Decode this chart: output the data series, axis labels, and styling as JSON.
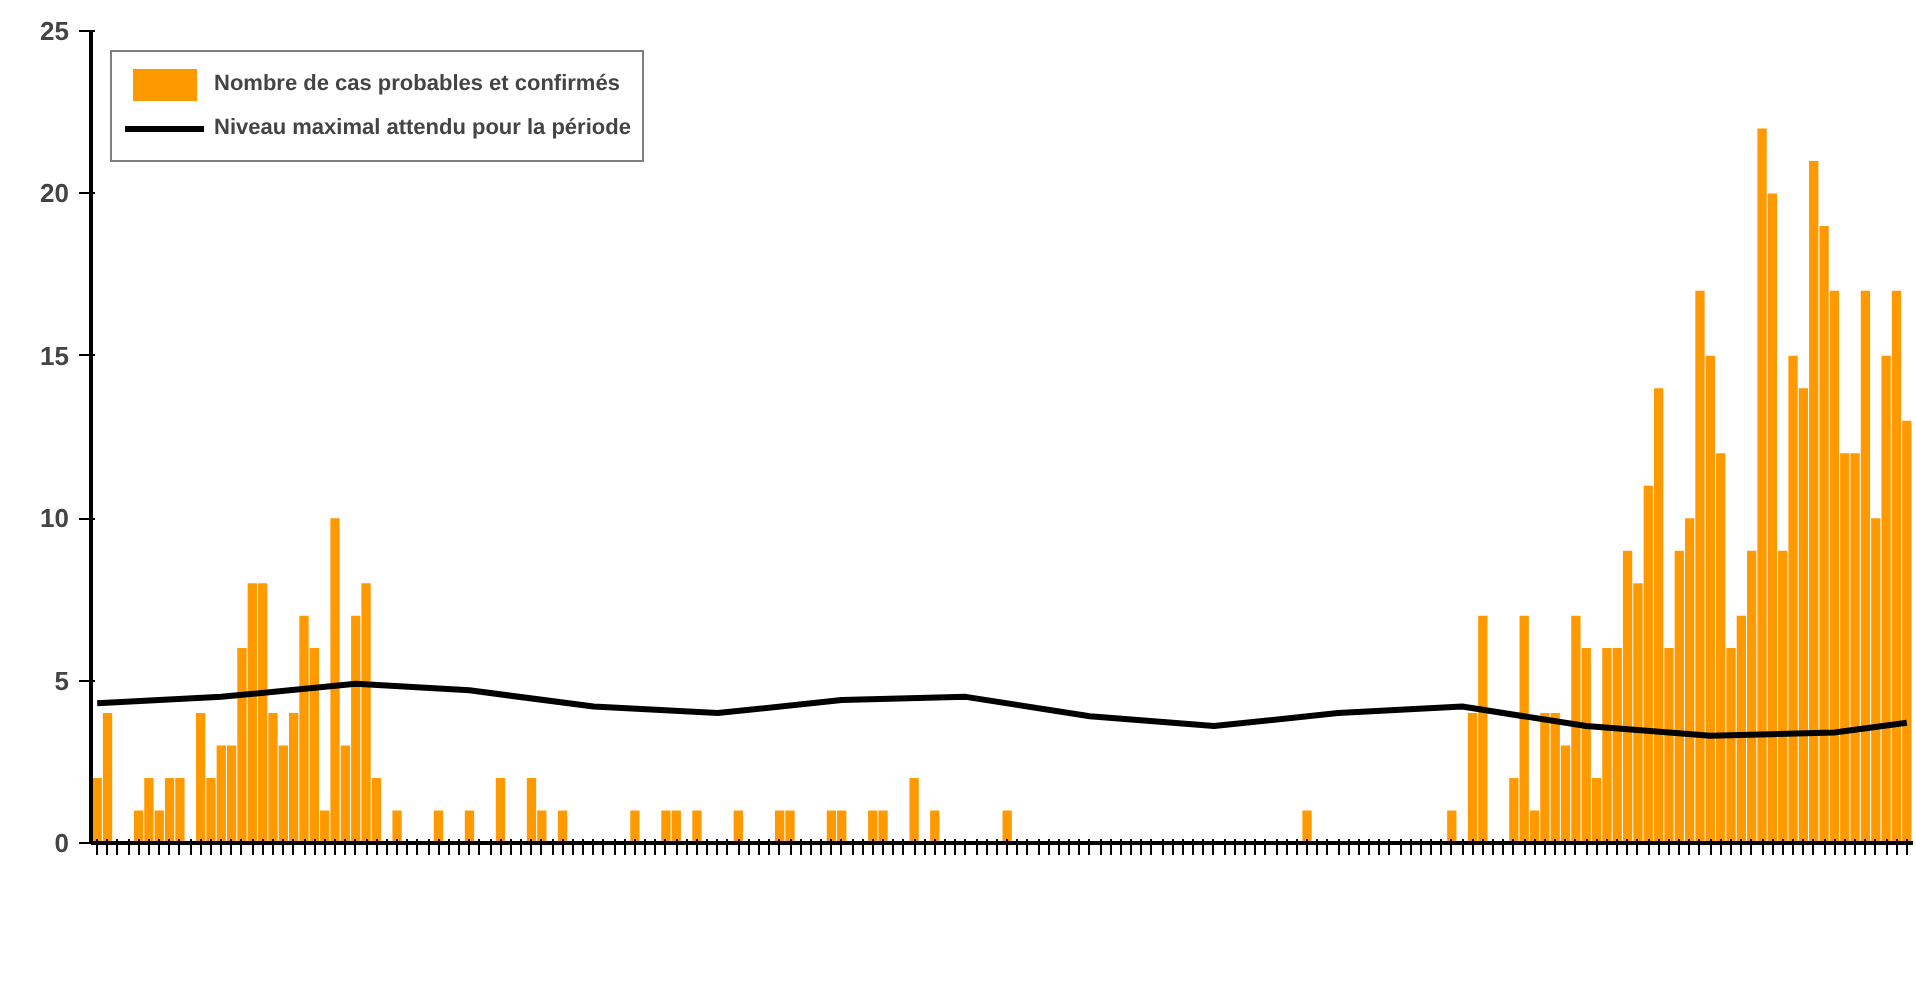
{
  "chart_data": {
    "type": "bar",
    "categories": [
      null,
      null,
      null,
      null,
      null,
      null,
      null,
      null,
      null,
      null,
      null,
      null,
      null,
      null,
      null,
      null,
      null,
      null,
      null,
      null,
      null,
      null,
      null,
      null,
      null,
      null,
      null,
      null,
      null,
      null,
      null,
      null,
      null,
      null,
      null,
      null,
      null,
      null,
      null,
      null,
      null,
      null,
      null,
      null,
      null,
      null,
      null,
      null,
      null,
      null,
      null,
      null,
      null,
      null,
      null,
      null,
      null,
      null,
      null,
      null,
      null,
      null,
      null,
      null,
      null,
      null,
      null,
      null,
      null,
      null,
      null,
      null,
      null,
      null,
      null,
      null,
      null,
      null,
      null,
      null,
      null,
      null,
      null,
      null,
      null,
      null,
      null,
      null,
      null,
      null,
      null,
      null,
      null,
      null,
      null,
      null,
      null,
      null,
      null,
      null,
      null,
      null,
      null,
      null,
      null,
      null,
      null,
      null,
      null,
      null,
      null,
      null,
      null,
      null,
      null,
      null,
      null,
      null,
      null,
      null,
      null,
      null,
      null,
      null,
      null,
      null,
      null,
      null,
      null,
      null,
      null,
      null,
      null,
      null,
      null,
      null,
      null,
      null,
      null,
      null,
      null,
      null,
      null,
      null,
      null,
      null,
      null,
      null,
      null,
      null,
      null,
      null,
      null,
      null,
      null,
      null,
      null,
      null,
      null,
      null,
      null,
      null,
      null,
      null,
      null,
      null,
      null,
      null,
      null,
      null,
      null,
      null,
      null,
      null,
      null,
      null
    ],
    "series": [
      {
        "name": "Nombre de cas probables et confirmés",
        "color": "#ff9900",
        "values": [
          2,
          4,
          0,
          0,
          1,
          2,
          1,
          2,
          2,
          0,
          4,
          2,
          3,
          3,
          6,
          8,
          8,
          4,
          3,
          4,
          7,
          6,
          1,
          10,
          3,
          7,
          8,
          2,
          0,
          1,
          0,
          0,
          0,
          1,
          0,
          0,
          1,
          0,
          0,
          2,
          0,
          0,
          2,
          1,
          0,
          1,
          0,
          0,
          0,
          0,
          0,
          0,
          1,
          0,
          0,
          1,
          1,
          0,
          1,
          0,
          0,
          0,
          1,
          0,
          0,
          0,
          1,
          1,
          0,
          0,
          0,
          1,
          1,
          0,
          0,
          1,
          1,
          0,
          0,
          2,
          0,
          1,
          0,
          0,
          0,
          0,
          0,
          0,
          1,
          0,
          0,
          0,
          0,
          0,
          0,
          0,
          0,
          0,
          0,
          0,
          0,
          0,
          0,
          0,
          0,
          0,
          0,
          0,
          0,
          0,
          0,
          0,
          0,
          0,
          0,
          0,
          0,
          1,
          0,
          0,
          0,
          0,
          0,
          0,
          0,
          0,
          0,
          0,
          0,
          0,
          0,
          1,
          0,
          4,
          7,
          0,
          0,
          2,
          7,
          1,
          4,
          4,
          3,
          7,
          6,
          2,
          6,
          6,
          9,
          8,
          11,
          14,
          6,
          9,
          10,
          17,
          15,
          12,
          6,
          7,
          9,
          22,
          20,
          9,
          15,
          14,
          21,
          19,
          17,
          12,
          12,
          17,
          10,
          15,
          17,
          13
        ]
      },
      {
        "name": "Niveau maximal attendu pour la période",
        "type": "line",
        "color": "#000000",
        "values": [
          4.3,
          null,
          null,
          null,
          null,
          null,
          null,
          null,
          null,
          null,
          null,
          null,
          4.5,
          null,
          null,
          null,
          null,
          null,
          null,
          null,
          null,
          null,
          null,
          null,
          null,
          4.9,
          null,
          null,
          null,
          null,
          null,
          null,
          null,
          null,
          null,
          null,
          4.7,
          null,
          null,
          null,
          null,
          null,
          null,
          null,
          null,
          null,
          null,
          null,
          4.2,
          null,
          null,
          null,
          null,
          null,
          null,
          null,
          null,
          null,
          null,
          null,
          4.0,
          null,
          null,
          null,
          null,
          null,
          null,
          null,
          null,
          null,
          null,
          null,
          4.4,
          null,
          null,
          null,
          null,
          null,
          null,
          null,
          null,
          null,
          null,
          null,
          4.5,
          null,
          null,
          null,
          null,
          null,
          null,
          null,
          null,
          null,
          null,
          null,
          3.9,
          null,
          null,
          null,
          null,
          null,
          null,
          null,
          null,
          null,
          null,
          null,
          3.6,
          null,
          null,
          null,
          null,
          null,
          null,
          null,
          null,
          null,
          null,
          null,
          4.0,
          null,
          null,
          null,
          null,
          null,
          null,
          null,
          null,
          null,
          null,
          null,
          4.2,
          null,
          null,
          null,
          null,
          null,
          null,
          null,
          null,
          null,
          null,
          null,
          3.6,
          null,
          null,
          null,
          null,
          null,
          null,
          null,
          null,
          null,
          null,
          null,
          3.3,
          null,
          null,
          null,
          null,
          null,
          null,
          null,
          null,
          null,
          null,
          null,
          3.4,
          null,
          null,
          null,
          null,
          null,
          null,
          3.7
        ]
      }
    ],
    "ylim": [
      0,
      25
    ],
    "yticks": [
      0,
      5,
      10,
      15,
      20,
      25
    ],
    "grid": false,
    "legend": "top left"
  }
}
